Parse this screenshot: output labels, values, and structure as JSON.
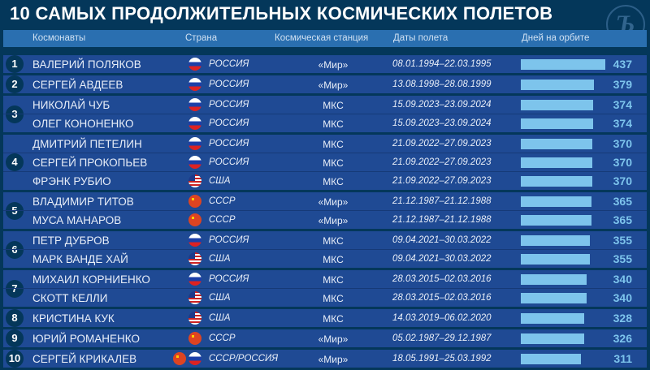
{
  "title": "10 САМЫХ ПРОДОЛЖИТЕЛЬНЫХ КОСМИЧЕСКИХ ПОЛЕТОВ",
  "logo_text": "Ъ",
  "headers": {
    "cosmonauts": "Космонавты",
    "country": "Страна",
    "station": "Космическая станция",
    "dates": "Даты полета",
    "days": "Дней на орбите"
  },
  "colors": {
    "background": "#04375a",
    "header": "#2a6fb0",
    "row": "#1f4a94",
    "bar": "#7dc4ec"
  },
  "bar_max": 437,
  "groups": [
    {
      "rank": "1",
      "rows": [
        {
          "name": "ВАЛЕРИЙ ПОЛЯКОВ",
          "flags": [
            "ru"
          ],
          "country": "РОССИЯ",
          "station": "«Мир»",
          "dates": "08.01.1994–22.03.1995",
          "days": 437
        }
      ]
    },
    {
      "rank": "2",
      "rows": [
        {
          "name": "СЕРГЕЙ АВДЕЕВ",
          "flags": [
            "ru"
          ],
          "country": "РОССИЯ",
          "station": "«Мир»",
          "dates": "13.08.1998–28.08.1999",
          "days": 379
        }
      ]
    },
    {
      "rank": "3",
      "rows": [
        {
          "name": "НИКОЛАЙ ЧУБ",
          "flags": [
            "ru"
          ],
          "country": "РОССИЯ",
          "station": "МКС",
          "dates": "15.09.2023–23.09.2024",
          "days": 374
        },
        {
          "name": "ОЛЕГ КОНОНЕНКО",
          "flags": [
            "ru"
          ],
          "country": "РОССИЯ",
          "station": "МКС",
          "dates": "15.09.2023–23.09.2024",
          "days": 374
        }
      ]
    },
    {
      "rank": "4",
      "rows": [
        {
          "name": "ДМИТРИЙ ПЕТЕЛИН",
          "flags": [
            "ru"
          ],
          "country": "РОССИЯ",
          "station": "МКС",
          "dates": "21.09.2022–27.09.2023",
          "days": 370
        },
        {
          "name": "СЕРГЕЙ ПРОКОПЬЕВ",
          "flags": [
            "ru"
          ],
          "country": "РОССИЯ",
          "station": "МКС",
          "dates": "21.09.2022–27.09.2023",
          "days": 370
        },
        {
          "name": "ФРЭНК РУБИО",
          "flags": [
            "us"
          ],
          "country": "США",
          "station": "МКС",
          "dates": "21.09.2022–27.09.2023",
          "days": 370
        }
      ]
    },
    {
      "rank": "5",
      "rows": [
        {
          "name": "ВЛАДИМИР ТИТОВ",
          "flags": [
            "su"
          ],
          "country": "СССР",
          "station": "«Мир»",
          "dates": "21.12.1987–21.12.1988",
          "days": 365
        },
        {
          "name": "МУСА МАНАРОВ",
          "flags": [
            "su"
          ],
          "country": "СССР",
          "station": "«Мир»",
          "dates": "21.12.1987–21.12.1988",
          "days": 365
        }
      ]
    },
    {
      "rank": "6",
      "rows": [
        {
          "name": "ПЕТР ДУБРОВ",
          "flags": [
            "ru"
          ],
          "country": "РОССИЯ",
          "station": "МКС",
          "dates": "09.04.2021–30.03.2022",
          "days": 355
        },
        {
          "name": "МАРК ВАНДЕ ХАЙ",
          "flags": [
            "us"
          ],
          "country": "США",
          "station": "МКС",
          "dates": "09.04.2021–30.03.2022",
          "days": 355
        }
      ]
    },
    {
      "rank": "7",
      "rows": [
        {
          "name": "МИХАИЛ КОРНИЕНКО",
          "flags": [
            "ru"
          ],
          "country": "РОССИЯ",
          "station": "МКС",
          "dates": "28.03.2015–02.03.2016",
          "days": 340
        },
        {
          "name": "СКОТТ КЕЛЛИ",
          "flags": [
            "us"
          ],
          "country": "США",
          "station": "МКС",
          "dates": "28.03.2015–02.03.2016",
          "days": 340
        }
      ]
    },
    {
      "rank": "8",
      "rows": [
        {
          "name": "КРИСТИНА КУК",
          "flags": [
            "us"
          ],
          "country": "США",
          "station": "МКС",
          "dates": "14.03.2019–06.02.2020",
          "days": 328
        }
      ]
    },
    {
      "rank": "9",
      "rows": [
        {
          "name": "ЮРИЙ РОМАНЕНКО",
          "flags": [
            "su"
          ],
          "country": "СССР",
          "station": "«Мир»",
          "dates": "05.02.1987–29.12.1987",
          "days": 326
        }
      ]
    },
    {
      "rank": "10",
      "rows": [
        {
          "name": "СЕРГЕЙ КРИКАЛЕВ",
          "flags": [
            "su",
            "ru"
          ],
          "country": "СССР/РОССИЯ",
          "station": "«Мир»",
          "dates": "18.05.1991–25.03.1992",
          "days": 311
        }
      ]
    }
  ]
}
